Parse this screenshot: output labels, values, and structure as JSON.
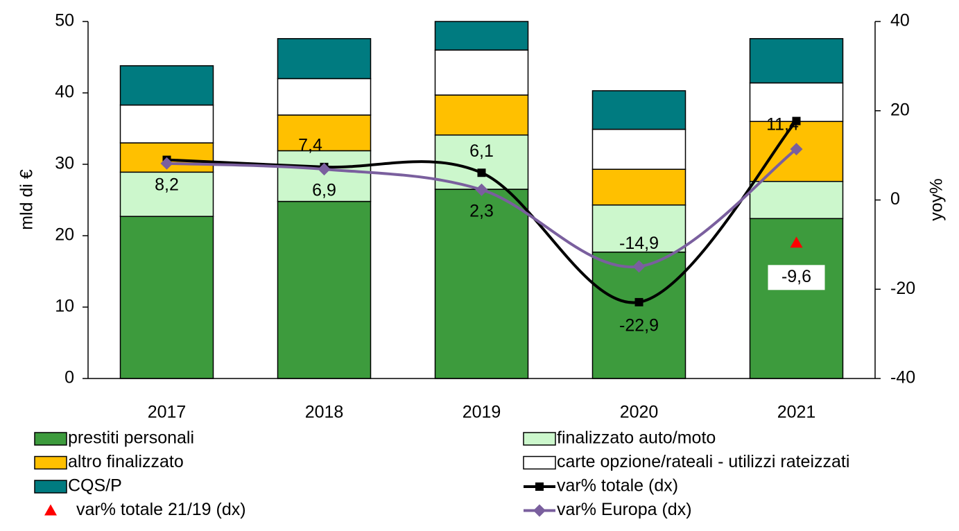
{
  "chart_data": {
    "type": "bar",
    "stacked": true,
    "categories": [
      "2017",
      "2018",
      "2019",
      "2020",
      "2021"
    ],
    "ylabel": "mld di €",
    "y2label": "yoy%",
    "ylim": [
      0,
      50
    ],
    "yticks": [
      0,
      10,
      20,
      30,
      40,
      50
    ],
    "y2lim": [
      -40,
      40
    ],
    "y2ticks": [
      -40,
      -20,
      0,
      20,
      40
    ],
    "series": [
      {
        "name": "prestiti personali",
        "type": "bar",
        "color": "#3d9b3d",
        "values": [
          22.7,
          24.8,
          26.5,
          17.7,
          22.4
        ]
      },
      {
        "name": "finalizzato auto/moto",
        "type": "bar",
        "color": "#ccf7cc",
        "values": [
          6.2,
          7.1,
          7.6,
          6.6,
          5.2
        ]
      },
      {
        "name": "altro finalizzato",
        "type": "bar",
        "color": "#ffc000",
        "values": [
          4.1,
          5.0,
          5.6,
          5.0,
          8.4
        ]
      },
      {
        "name": "carte opzione/rateali - utilizzi rateizzati",
        "type": "bar",
        "color": "#ffffff",
        "values": [
          5.3,
          5.1,
          6.3,
          5.6,
          5.4
        ]
      },
      {
        "name": "CQS/P",
        "type": "bar",
        "color": "#007b80",
        "values": [
          5.5,
          5.6,
          4.0,
          5.4,
          6.2
        ]
      },
      {
        "name": "var% totale (dx)",
        "type": "line",
        "axis": "y2",
        "color": "#000000",
        "marker": "square",
        "values": [
          9.0,
          7.4,
          6.1,
          -22.9,
          17.7
        ],
        "value_labels": [
          null,
          "7,4",
          "6,1",
          "-22,9",
          null
        ]
      },
      {
        "name": "var% totale 21/19 (dx)",
        "type": "scatter",
        "axis": "y2",
        "color": "#ff0000",
        "marker": "triangle",
        "values": [
          null,
          null,
          null,
          null,
          -9.6
        ],
        "value_labels": [
          null,
          null,
          null,
          null,
          "-9,6"
        ]
      },
      {
        "name": "var% Europa (dx)",
        "type": "line",
        "axis": "y2",
        "color": "#7a5f9e",
        "marker": "diamond",
        "values": [
          8.2,
          6.9,
          2.3,
          -14.9,
          11.4
        ],
        "value_labels": [
          "8,2",
          "6,9",
          "2,3",
          "-14,9",
          "11,4"
        ]
      }
    ]
  }
}
